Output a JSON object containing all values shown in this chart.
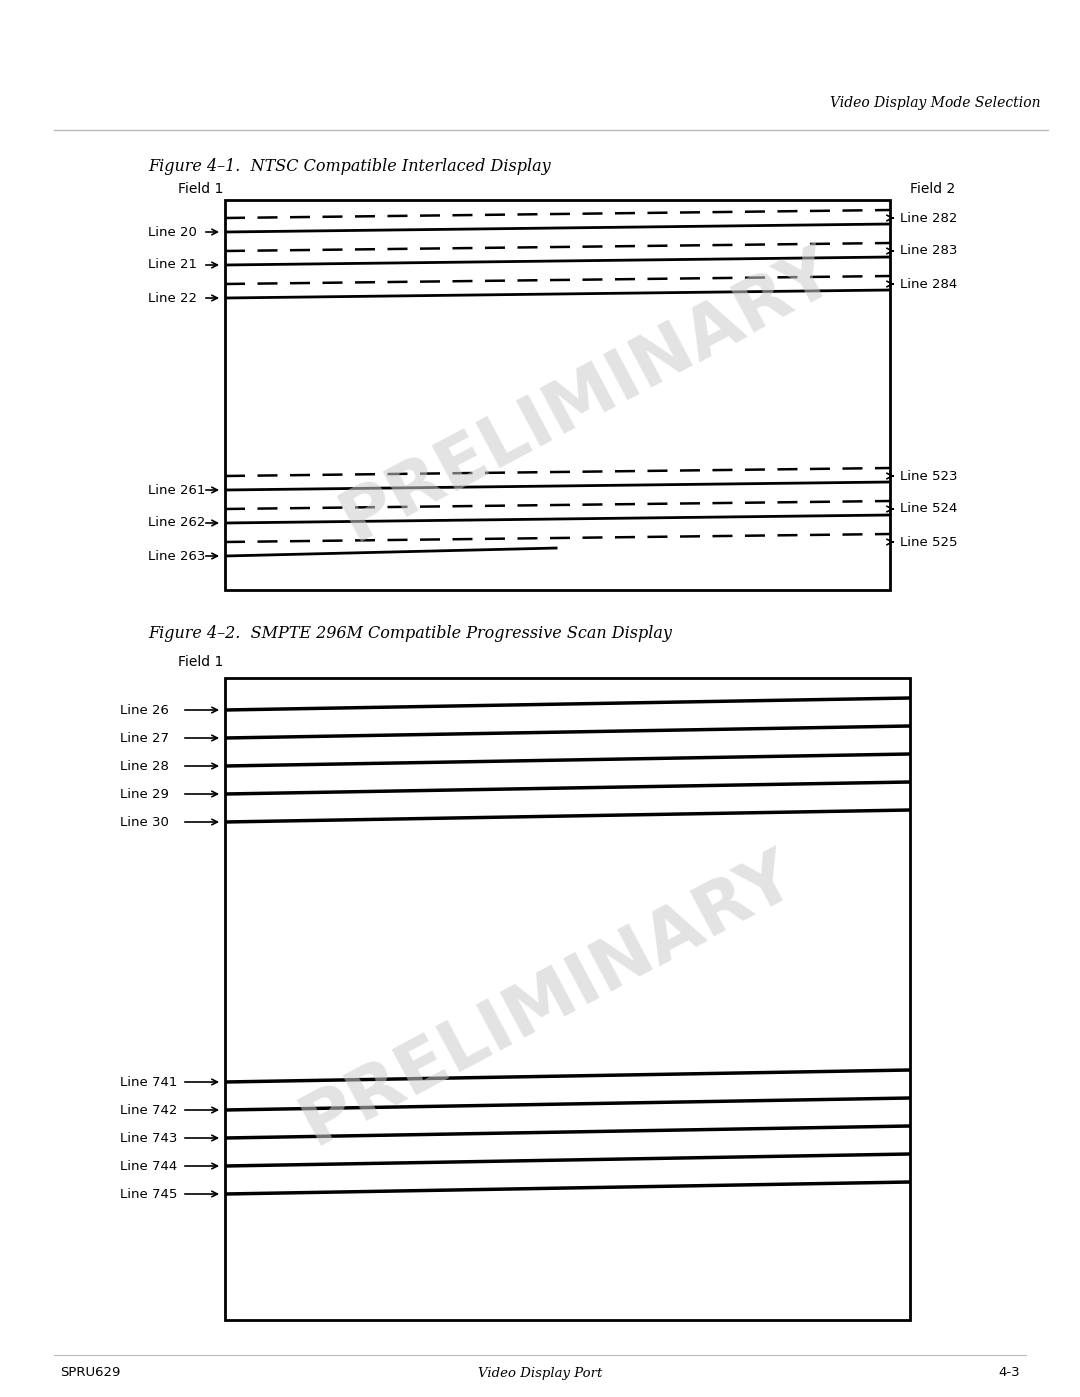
{
  "bg_color": "#ffffff",
  "header_text": "Video Display Mode Selection",
  "fig1_title": "Figure 4–1.  NTSC Compatible Interlaced Display",
  "fig1_field1_label": "Field 1",
  "fig1_field2_label": "Field 2",
  "fig1_left_labels": [
    "Line 20",
    "Line 21",
    "Line 22",
    "Line 261",
    "Line 262",
    "Line 263"
  ],
  "fig1_right_labels": [
    "Line 282",
    "Line 283",
    "Line 284",
    "Line 523",
    "Line 524",
    "Line 525"
  ],
  "fig2_title": "Figure 4–2.  SMPTE 296M Compatible Progressive Scan Display",
  "fig2_field1_label": "Field 1",
  "fig2_left_labels": [
    "Line 26",
    "Line 27",
    "Line 28",
    "Line 29",
    "Line 30",
    "Line 741",
    "Line 742",
    "Line 743",
    "Line 744",
    "Line 745"
  ],
  "footer_left": "SPRU629",
  "footer_center": "Video Display Port",
  "footer_right": "4-3",
  "preliminary_color": "#cccccc",
  "preliminary_text": "PRELIMINARY"
}
